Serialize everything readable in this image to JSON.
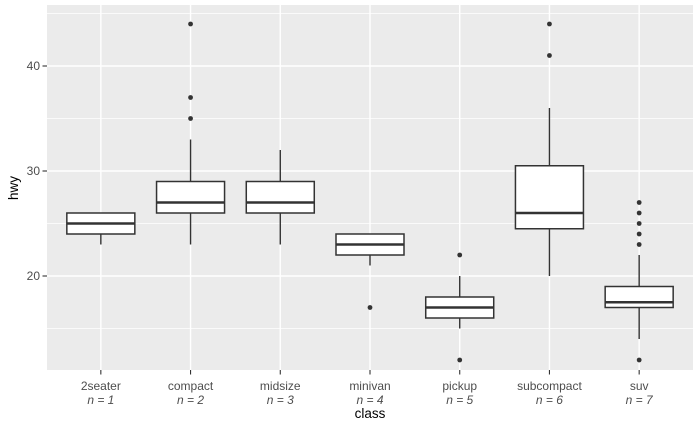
{
  "chart_data": {
    "type": "boxplot",
    "title": "",
    "xlabel": "class",
    "ylabel": "hwy",
    "ylim": [
      11,
      45.8
    ],
    "y_major_ticks": [
      20,
      30,
      40
    ],
    "y_minor_gridlines": [
      15,
      25,
      35,
      45
    ],
    "grid": "on",
    "legend": "none",
    "categories": [
      "2seater",
      "compact",
      "midsize",
      "minivan",
      "pickup",
      "subcompact",
      "suv"
    ],
    "n_labels": [
      "n = 1",
      "n = 2",
      "n = 3",
      "n = 4",
      "n = 5",
      "n = 6",
      "n = 7"
    ],
    "series": [
      {
        "class": "2seater",
        "n_label": "n = 1",
        "lower_whisker": 23,
        "q1": 24,
        "median": 25,
        "q3": 26,
        "upper_whisker": 26,
        "outliers": []
      },
      {
        "class": "compact",
        "n_label": "n = 2",
        "lower_whisker": 23,
        "q1": 26,
        "median": 27,
        "q3": 29,
        "upper_whisker": 33,
        "outliers": [
          35,
          37,
          44
        ]
      },
      {
        "class": "midsize",
        "n_label": "n = 3",
        "lower_whisker": 23,
        "q1": 26,
        "median": 27,
        "q3": 29,
        "upper_whisker": 32,
        "outliers": []
      },
      {
        "class": "minivan",
        "n_label": "n = 4",
        "lower_whisker": 21,
        "q1": 22,
        "median": 23,
        "q3": 24,
        "upper_whisker": 24,
        "outliers": [
          17
        ]
      },
      {
        "class": "pickup",
        "n_label": "n = 5",
        "lower_whisker": 15,
        "q1": 16,
        "median": 17,
        "q3": 18,
        "upper_whisker": 20,
        "outliers": [
          22,
          12
        ]
      },
      {
        "class": "subcompact",
        "n_label": "n = 6",
        "lower_whisker": 20,
        "q1": 24.5,
        "median": 26,
        "q3": 30.5,
        "upper_whisker": 36,
        "outliers": [
          41,
          44
        ]
      },
      {
        "class": "suv",
        "n_label": "n = 7",
        "lower_whisker": 14,
        "q1": 17,
        "median": 17.5,
        "q3": 19,
        "upper_whisker": 22,
        "outliers": [
          23,
          24,
          25,
          26,
          27,
          12
        ]
      }
    ],
    "colors": {
      "figure_bg": "#ffffff",
      "panel_bg": "#ebebeb",
      "gridline": "#ffffff",
      "box_fill": "#ffffff",
      "box_stroke": "#333333",
      "outlier": "#333333",
      "tick_mark": "#333333",
      "tick_text": "#4d4d4d",
      "axis_title_text": "#000000"
    }
  }
}
